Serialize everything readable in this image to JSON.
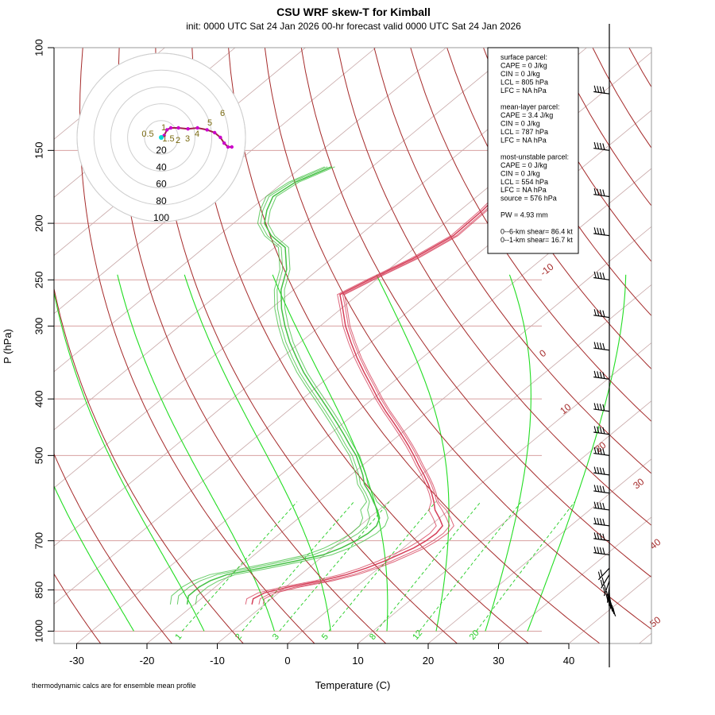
{
  "header": {
    "title": "CSU WRF skew-T for Kimball",
    "subtitle": "init: 0000 UTC Sat 24 Jan 2026     00-hr forecast valid 0000 UTC Sat 24 Jan 2026"
  },
  "footnote": "thermodynamic calcs are for ensemble mean profile",
  "params_box": {
    "lines": [
      "surface parcel:",
      "CAPE = 0 J/kg",
      "CIN = 0 J/kg",
      "LCL = 805 hPa",
      "LFC = NA hPa",
      "",
      "mean-layer parcel:",
      "CAPE = 3.4 J/kg",
      "CIN = 0 J/kg",
      "LCL = 787 hPa",
      "LFC = NA hPa",
      "",
      "most-unstable parcel:",
      "CAPE = 0 J/kg",
      "CIN = 0 J/kg",
      "LCL = 554 hPa",
      "LFC = NA hPa",
      "source = 576 hPa",
      "",
      "PW =  4.93 mm",
      "",
      "0--6-km shear= 86.4 kt",
      "0--1-km shear= 16.7 kt"
    ]
  },
  "colors": {
    "temperature": "#d6405a",
    "dewpoint": "#44c044",
    "dry_adiabat": "#a52a2a",
    "moist_adiabat": "#22dd22",
    "mixing_ratio": "#22cc22",
    "isotherm": "#c8a8a8",
    "isobar": "#d8a0a0",
    "hodograph": "#a0204a",
    "hodo_marker": "#cc00cc"
  },
  "chart_data": {
    "type": "skew-t",
    "title": "CSU WRF skew-T for Kimball",
    "xlabel": "Temperature (C)",
    "ylabel": "P (hPa)",
    "x_ticks": [
      -30,
      -20,
      -10,
      0,
      10,
      20,
      30,
      40
    ],
    "y_ticks": [
      100,
      150,
      200,
      250,
      300,
      400,
      500,
      700,
      850,
      1000
    ],
    "isotherm_labels": [
      -10,
      0,
      10,
      20,
      30,
      40,
      50
    ],
    "mixing_ratio_labels": [
      "1",
      "2",
      "3",
      "5",
      "8",
      "12",
      "20"
    ],
    "mixing_ratios_gkg": [
      1,
      2,
      3,
      5,
      8,
      12,
      20
    ],
    "hodograph_ring_labels": [
      "20",
      "40",
      "60",
      "80",
      "100"
    ],
    "hodograph_point_labels": [
      "0.5",
      "1",
      "1.5",
      "2",
      "3",
      "4",
      "5",
      "6"
    ],
    "series": [
      {
        "name": "temperature",
        "points": [
          [
            900,
            -11.8
          ],
          [
            880,
            -12.6
          ],
          [
            860,
            -12.0
          ],
          [
            840,
            -9.5
          ],
          [
            820,
            -6.0
          ],
          [
            800,
            -3.5
          ],
          [
            780,
            -1.8
          ],
          [
            760,
            -0.5
          ],
          [
            740,
            0.5
          ],
          [
            720,
            1.5
          ],
          [
            700,
            2.0
          ],
          [
            680,
            2.2
          ],
          [
            660,
            1.8
          ],
          [
            640,
            0.0
          ],
          [
            620,
            -2.0
          ],
          [
            600,
            -3.6
          ],
          [
            580,
            -5.4
          ],
          [
            560,
            -7.4
          ],
          [
            540,
            -9.6
          ],
          [
            520,
            -12.0
          ],
          [
            500,
            -14.4
          ],
          [
            480,
            -17.0
          ],
          [
            460,
            -19.8
          ],
          [
            440,
            -22.8
          ],
          [
            420,
            -26.0
          ],
          [
            400,
            -29.2
          ],
          [
            380,
            -32.4
          ],
          [
            360,
            -35.8
          ],
          [
            340,
            -39.3
          ],
          [
            320,
            -42.8
          ],
          [
            300,
            -46.4
          ],
          [
            280,
            -49.8
          ],
          [
            265,
            -52.6
          ],
          [
            250,
            -51.0
          ],
          [
            230,
            -48.4
          ],
          [
            210,
            -46.6
          ],
          [
            190,
            -46.8
          ],
          [
            170,
            -47.6
          ],
          [
            150,
            -50.4
          ],
          [
            130,
            -54.6
          ],
          [
            118,
            -57.3
          ]
        ]
      },
      {
        "name": "dewpoint",
        "points": [
          [
            900,
            -21.0
          ],
          [
            870,
            -22.3
          ],
          [
            840,
            -22.3
          ],
          [
            820,
            -21.8
          ],
          [
            800,
            -20.5
          ],
          [
            780,
            -16.8
          ],
          [
            760,
            -13.3
          ],
          [
            740,
            -10.2
          ],
          [
            720,
            -8.8
          ],
          [
            700,
            -8.0
          ],
          [
            680,
            -7.5
          ],
          [
            660,
            -7.6
          ],
          [
            640,
            -8.5
          ],
          [
            620,
            -10.2
          ],
          [
            600,
            -12.2
          ],
          [
            580,
            -14.2
          ],
          [
            560,
            -16.5
          ],
          [
            540,
            -18.3
          ],
          [
            520,
            -20.4
          ],
          [
            500,
            -22.6
          ],
          [
            480,
            -25.3
          ],
          [
            460,
            -28.0
          ],
          [
            440,
            -30.9
          ],
          [
            420,
            -34.0
          ],
          [
            400,
            -37.3
          ],
          [
            380,
            -40.8
          ],
          [
            360,
            -44.4
          ],
          [
            340,
            -47.9
          ],
          [
            320,
            -51.5
          ],
          [
            300,
            -55.0
          ],
          [
            280,
            -58.5
          ],
          [
            260,
            -61.8
          ],
          [
            240,
            -64.5
          ],
          [
            220,
            -68.5
          ],
          [
            210,
            -72.5
          ],
          [
            200,
            -75.6
          ],
          [
            190,
            -77.5
          ],
          [
            180,
            -79.0
          ],
          [
            170,
            -78.3
          ],
          [
            160,
            -75.8
          ]
        ]
      }
    ],
    "hodograph": [
      [
        0,
        0
      ],
      [
        3,
        -2
      ],
      [
        6,
        -8
      ],
      [
        10,
        -10
      ],
      [
        18,
        -10
      ],
      [
        28,
        -9
      ],
      [
        38,
        -10
      ],
      [
        48,
        -8
      ],
      [
        56,
        -5
      ],
      [
        62,
        0
      ],
      [
        66,
        6
      ],
      [
        70,
        10
      ],
      [
        74,
        10
      ]
    ],
    "wind_barb_levels": [
      120,
      150,
      180,
      210,
      250,
      290,
      330,
      370,
      420,
      460,
      500,
      540,
      580,
      620,
      660,
      700,
      740,
      780,
      800,
      820,
      840,
      850,
      860,
      870,
      880,
      890
    ]
  }
}
